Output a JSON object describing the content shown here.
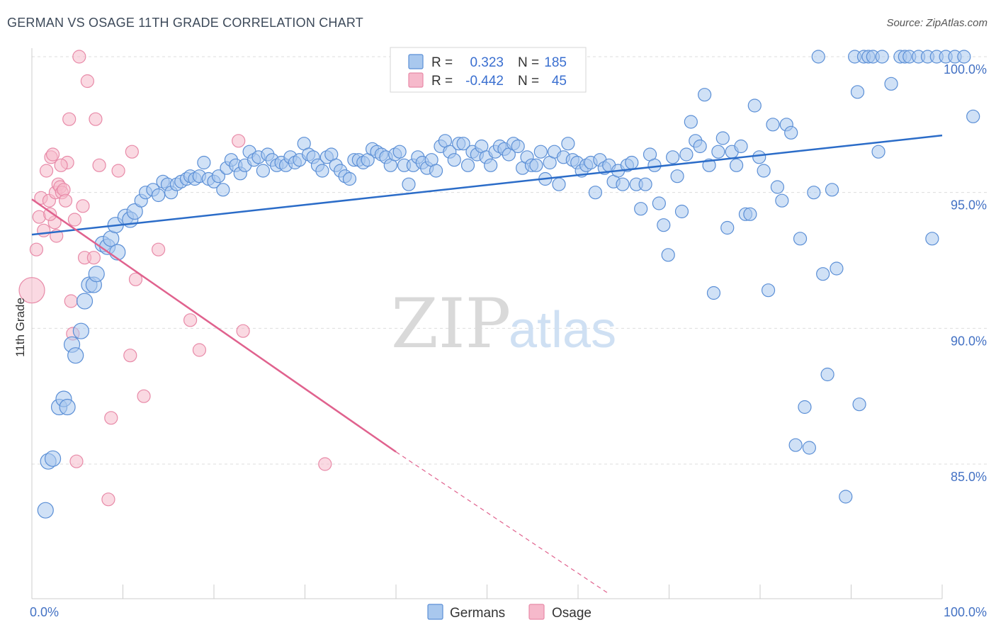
{
  "title": "GERMAN VS OSAGE 11TH GRADE CORRELATION CHART",
  "source": "Source: ZipAtlas.com",
  "watermark": {
    "zip": "ZIP",
    "atlas": "atlas"
  },
  "colors": {
    "german_fill": "#a9c8ee",
    "german_stroke": "#5b8fd6",
    "german_line": "#2b6cc8",
    "osage_fill": "#f6b9cb",
    "osage_stroke": "#e88aa8",
    "osage_line": "#e0628e",
    "tick_label": "#4472c4",
    "grid": "#dddddd"
  },
  "legend_top": {
    "rows": [
      {
        "r_label": "R =",
        "r_value": "0.323",
        "n_label": "N =",
        "n_value": "185"
      },
      {
        "r_label": "R =",
        "r_value": "-0.442",
        "n_label": "N =",
        "n_value": "45"
      }
    ]
  },
  "legend_bottom": [
    "Germans",
    "Osage"
  ],
  "chart_data": {
    "type": "scatter",
    "title": "GERMAN VS OSAGE 11TH GRADE CORRELATION CHART",
    "xlabel": "",
    "ylabel": "11th Grade",
    "x_tick_labels": [
      "0.0%",
      "100.0%"
    ],
    "y_tick_labels": [
      "100.0%",
      "95.0%",
      "90.0%",
      "85.0%"
    ],
    "y_ticks": [
      100,
      95,
      90,
      85
    ],
    "xlim": [
      0,
      100
    ],
    "ylim": [
      80.2,
      100.8
    ],
    "grid": true,
    "legend_position": "bottom",
    "series": [
      {
        "name": "Germans",
        "r": 0.323,
        "n": 185,
        "trend": {
          "x": [
            0,
            100
          ],
          "y": [
            93.45,
            97.1
          ]
        },
        "points": [
          [
            1.5,
            83.3
          ],
          [
            1.8,
            85.1
          ],
          [
            2.3,
            85.2
          ],
          [
            3.0,
            87.1
          ],
          [
            3.5,
            87.4
          ],
          [
            3.9,
            87.1
          ],
          [
            4.4,
            89.4
          ],
          [
            4.8,
            89.0
          ],
          [
            5.4,
            89.9
          ],
          [
            5.8,
            91.0
          ],
          [
            6.3,
            91.6
          ],
          [
            6.8,
            91.6
          ],
          [
            7.1,
            92.0
          ],
          [
            7.8,
            93.1
          ],
          [
            8.3,
            93.0
          ],
          [
            8.7,
            93.3
          ],
          [
            9.4,
            92.8
          ],
          [
            9.2,
            93.8
          ],
          [
            10.3,
            94.1
          ],
          [
            10.8,
            94.0
          ],
          [
            11.3,
            94.3
          ],
          [
            12.0,
            94.7
          ],
          [
            12.5,
            95.0
          ],
          [
            13.3,
            95.1
          ],
          [
            13.9,
            94.9
          ],
          [
            14.4,
            95.4
          ],
          [
            14.9,
            95.3
          ],
          [
            15.3,
            95.0
          ],
          [
            15.9,
            95.3
          ],
          [
            16.4,
            95.4
          ],
          [
            17.0,
            95.5
          ],
          [
            17.4,
            95.6
          ],
          [
            17.9,
            95.5
          ],
          [
            18.4,
            95.6
          ],
          [
            18.9,
            96.1
          ],
          [
            19.4,
            95.5
          ],
          [
            20.0,
            95.4
          ],
          [
            20.5,
            95.6
          ],
          [
            21.0,
            95.1
          ],
          [
            21.4,
            95.9
          ],
          [
            21.9,
            96.2
          ],
          [
            22.4,
            96.0
          ],
          [
            22.9,
            95.7
          ],
          [
            23.4,
            96.0
          ],
          [
            23.9,
            96.5
          ],
          [
            24.4,
            96.2
          ],
          [
            24.9,
            96.3
          ],
          [
            25.4,
            95.8
          ],
          [
            25.9,
            96.4
          ],
          [
            26.4,
            96.2
          ],
          [
            26.9,
            96.0
          ],
          [
            27.4,
            96.1
          ],
          [
            27.9,
            96.0
          ],
          [
            28.4,
            96.3
          ],
          [
            28.9,
            96.1
          ],
          [
            29.4,
            96.2
          ],
          [
            29.9,
            96.8
          ],
          [
            30.4,
            96.4
          ],
          [
            30.9,
            96.3
          ],
          [
            31.4,
            96.0
          ],
          [
            31.9,
            95.8
          ],
          [
            32.4,
            96.3
          ],
          [
            32.9,
            96.4
          ],
          [
            33.4,
            96.0
          ],
          [
            33.9,
            95.8
          ],
          [
            34.4,
            95.6
          ],
          [
            34.9,
            95.5
          ],
          [
            35.4,
            96.2
          ],
          [
            35.9,
            96.2
          ],
          [
            36.4,
            96.1
          ],
          [
            36.9,
            96.2
          ],
          [
            37.4,
            96.6
          ],
          [
            37.9,
            96.5
          ],
          [
            38.4,
            96.4
          ],
          [
            38.9,
            96.3
          ],
          [
            39.4,
            96.0
          ],
          [
            39.9,
            96.4
          ],
          [
            40.4,
            96.5
          ],
          [
            40.9,
            96.0
          ],
          [
            41.4,
            95.3
          ],
          [
            41.9,
            96.0
          ],
          [
            42.4,
            96.3
          ],
          [
            42.9,
            96.1
          ],
          [
            43.4,
            95.9
          ],
          [
            43.9,
            96.2
          ],
          [
            44.4,
            95.8
          ],
          [
            44.9,
            96.7
          ],
          [
            45.4,
            96.9
          ],
          [
            45.9,
            96.5
          ],
          [
            46.4,
            96.2
          ],
          [
            46.9,
            96.8
          ],
          [
            47.4,
            96.8
          ],
          [
            47.9,
            96.0
          ],
          [
            48.4,
            96.5
          ],
          [
            48.9,
            96.4
          ],
          [
            49.4,
            96.7
          ],
          [
            49.9,
            96.3
          ],
          [
            50.4,
            96.0
          ],
          [
            50.9,
            96.5
          ],
          [
            51.4,
            96.7
          ],
          [
            51.9,
            96.6
          ],
          [
            52.4,
            96.4
          ],
          [
            52.9,
            96.8
          ],
          [
            53.4,
            96.7
          ],
          [
            53.9,
            95.9
          ],
          [
            54.4,
            96.3
          ],
          [
            54.9,
            96.0
          ],
          [
            55.4,
            96.0
          ],
          [
            55.9,
            96.5
          ],
          [
            56.4,
            95.5
          ],
          [
            56.9,
            96.1
          ],
          [
            57.4,
            96.5
          ],
          [
            57.9,
            95.3
          ],
          [
            58.4,
            96.3
          ],
          [
            58.9,
            96.8
          ],
          [
            59.4,
            96.2
          ],
          [
            59.9,
            96.1
          ],
          [
            60.4,
            95.8
          ],
          [
            60.9,
            96.0
          ],
          [
            61.4,
            96.1
          ],
          [
            61.9,
            95.0
          ],
          [
            62.4,
            96.2
          ],
          [
            62.9,
            95.9
          ],
          [
            63.4,
            96.0
          ],
          [
            63.9,
            95.4
          ],
          [
            64.4,
            95.8
          ],
          [
            64.9,
            95.3
          ],
          [
            65.4,
            96.0
          ],
          [
            65.9,
            96.1
          ],
          [
            66.4,
            95.3
          ],
          [
            66.9,
            94.4
          ],
          [
            67.4,
            95.3
          ],
          [
            67.9,
            96.4
          ],
          [
            68.4,
            96.0
          ],
          [
            68.9,
            94.6
          ],
          [
            69.4,
            93.8
          ],
          [
            69.9,
            92.7
          ],
          [
            70.4,
            96.3
          ],
          [
            70.9,
            95.6
          ],
          [
            71.4,
            94.3
          ],
          [
            71.9,
            96.4
          ],
          [
            72.4,
            97.6
          ],
          [
            72.9,
            96.9
          ],
          [
            73.4,
            96.7
          ],
          [
            73.9,
            98.6
          ],
          [
            74.4,
            96.0
          ],
          [
            74.9,
            91.3
          ],
          [
            75.4,
            96.5
          ],
          [
            75.9,
            97.0
          ],
          [
            76.4,
            93.7
          ],
          [
            76.9,
            96.5
          ],
          [
            77.4,
            96.0
          ],
          [
            77.9,
            96.7
          ],
          [
            78.4,
            94.2
          ],
          [
            78.9,
            94.2
          ],
          [
            79.4,
            98.2
          ],
          [
            79.9,
            96.3
          ],
          [
            80.4,
            95.8
          ],
          [
            80.9,
            91.4
          ],
          [
            81.4,
            97.5
          ],
          [
            81.9,
            95.2
          ],
          [
            82.4,
            94.7
          ],
          [
            82.9,
            97.5
          ],
          [
            83.4,
            97.2
          ],
          [
            83.9,
            85.7
          ],
          [
            84.4,
            93.3
          ],
          [
            84.9,
            87.1
          ],
          [
            85.4,
            85.6
          ],
          [
            85.9,
            95.0
          ],
          [
            86.4,
            100.0
          ],
          [
            86.9,
            92.0
          ],
          [
            87.4,
            88.3
          ],
          [
            87.9,
            95.1
          ],
          [
            88.4,
            92.2
          ],
          [
            89.4,
            83.8
          ],
          [
            90.4,
            100.0
          ],
          [
            90.9,
            87.2
          ],
          [
            91.4,
            100.0
          ],
          [
            91.9,
            100.0
          ],
          [
            92.4,
            100.0
          ],
          [
            93.4,
            100.0
          ],
          [
            94.4,
            99.0
          ],
          [
            95.4,
            100.0
          ],
          [
            95.9,
            100.0
          ],
          [
            96.4,
            100.0
          ],
          [
            97.4,
            100.0
          ],
          [
            98.4,
            100.0
          ],
          [
            99.4,
            100.0
          ],
          [
            100.4,
            100.0
          ],
          [
            101.4,
            100.0
          ],
          [
            102.4,
            100.0
          ],
          [
            103.4,
            97.8
          ],
          [
            98.9,
            93.3
          ],
          [
            90.7,
            98.7
          ],
          [
            93.0,
            96.5
          ]
        ]
      },
      {
        "name": "Osage",
        "r": -0.442,
        "n": 45,
        "trend": {
          "x": [
            0,
            40
          ],
          "y": [
            94.75,
            85.45
          ]
        },
        "trend_dashed": {
          "x": [
            40,
            63.5
          ],
          "y": [
            85.45,
            80.2
          ]
        },
        "points": [
          [
            0.0,
            91.4
          ],
          [
            0.5,
            92.9
          ],
          [
            0.8,
            94.1
          ],
          [
            1.0,
            94.8
          ],
          [
            1.3,
            93.6
          ],
          [
            1.6,
            95.8
          ],
          [
            1.9,
            94.7
          ],
          [
            2.1,
            96.3
          ],
          [
            2.3,
            96.4
          ],
          [
            2.5,
            93.9
          ],
          [
            2.6,
            95.0
          ],
          [
            2.7,
            93.4
          ],
          [
            2.9,
            95.3
          ],
          [
            3.1,
            95.2
          ],
          [
            3.3,
            95.0
          ],
          [
            3.5,
            95.1
          ],
          [
            3.7,
            94.7
          ],
          [
            3.9,
            96.1
          ],
          [
            4.1,
            97.7
          ],
          [
            4.3,
            91.0
          ],
          [
            4.5,
            89.8
          ],
          [
            4.7,
            94.0
          ],
          [
            4.9,
            85.1
          ],
          [
            5.2,
            100.0
          ],
          [
            5.6,
            94.5
          ],
          [
            5.8,
            92.6
          ],
          [
            6.1,
            99.1
          ],
          [
            6.8,
            92.6
          ],
          [
            7.0,
            97.7
          ],
          [
            7.4,
            96.0
          ],
          [
            8.4,
            83.7
          ],
          [
            8.7,
            86.7
          ],
          [
            9.5,
            95.8
          ],
          [
            10.8,
            89.0
          ],
          [
            11.4,
            91.8
          ],
          [
            12.3,
            87.5
          ],
          [
            13.9,
            92.9
          ],
          [
            17.4,
            90.3
          ],
          [
            18.4,
            89.2
          ],
          [
            22.7,
            96.9
          ],
          [
            23.2,
            89.9
          ],
          [
            32.2,
            85.0
          ],
          [
            11.0,
            96.5
          ],
          [
            2.0,
            94.2
          ],
          [
            3.2,
            96.0
          ]
        ]
      }
    ]
  }
}
